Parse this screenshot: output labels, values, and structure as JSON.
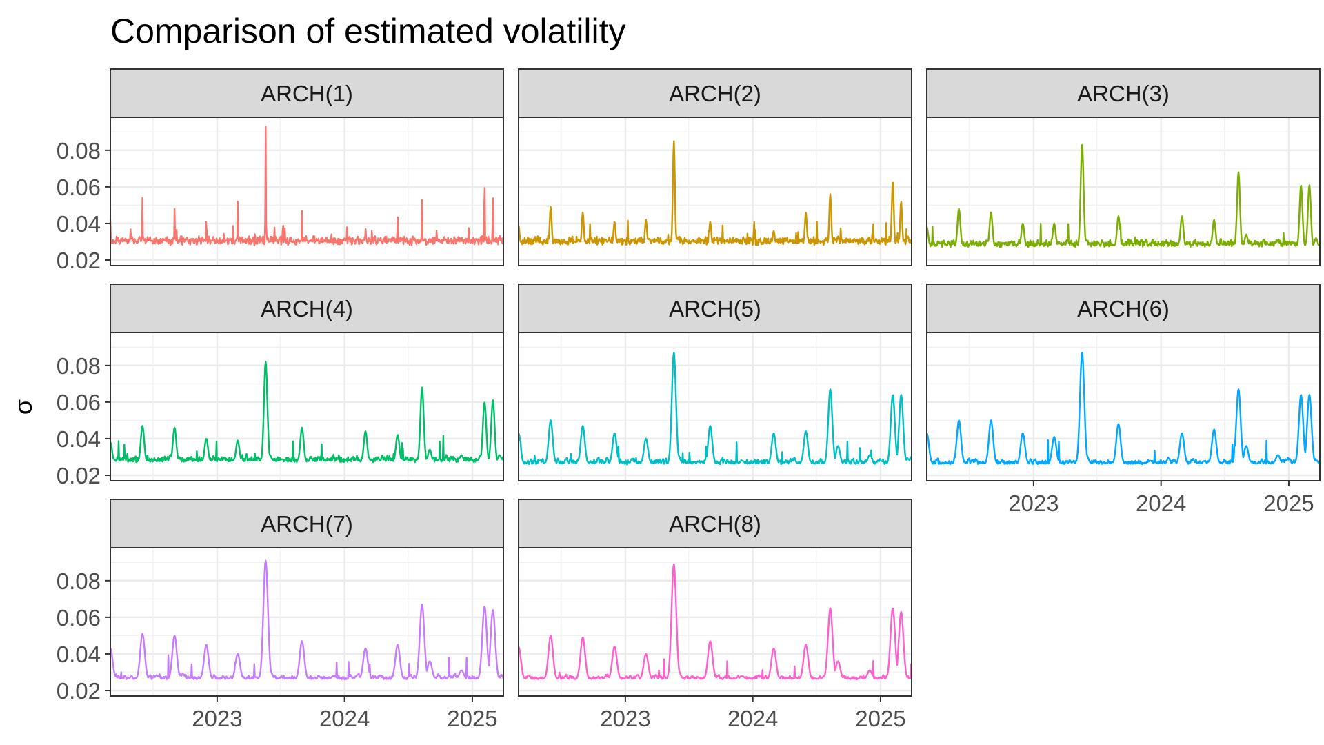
{
  "chart_data": {
    "type": "line",
    "title": "Comparison of estimated volatility",
    "xlabel": "",
    "ylabel": "σ",
    "x_range": [
      "2022-03-01",
      "2025-03-31"
    ],
    "ylim": [
      0.02,
      0.095
    ],
    "y_ticks": [
      "0.02",
      "0.04",
      "0.06",
      "0.08"
    ],
    "x_ticks": [
      {
        "date": "2023-01-01",
        "label": "2023"
      },
      {
        "date": "2024-01-01",
        "label": "2024"
      },
      {
        "date": "2025-01-01",
        "label": "2025"
      }
    ],
    "grid": true,
    "legend": "none",
    "panels": [
      {
        "name": "ARCH(1)",
        "color": "#F8766D",
        "base": 0.028,
        "noise": 0.003,
        "spike_scale": 1.0,
        "smooth": 0.0,
        "x": [
          "2022-03-01",
          "2022-06-01",
          "2022-09-01",
          "2022-12-01",
          "2023-03-01",
          "2023-05-20",
          "2023-06-01",
          "2023-09-01",
          "2023-12-01",
          "2024-03-01",
          "2024-06-01",
          "2024-08-10",
          "2024-09-01",
          "2024-12-01",
          "2025-02-05",
          "2025-03-01",
          "2025-03-20"
        ],
        "y": [
          0.042,
          0.054,
          0.048,
          0.044,
          0.052,
          0.093,
          0.028,
          0.047,
          0.028,
          0.038,
          0.045,
          0.053,
          0.032,
          0.029,
          0.069,
          0.056,
          0.035
        ]
      },
      {
        "name": "ARCH(2)",
        "color": "#CD9600",
        "base": 0.028,
        "noise": 0.003,
        "spike_scale": 1.0,
        "smooth": 0.25,
        "x": [
          "2022-03-01",
          "2022-06-01",
          "2022-09-01",
          "2022-12-01",
          "2023-03-01",
          "2023-05-20",
          "2023-06-01",
          "2023-09-01",
          "2023-12-01",
          "2024-03-01",
          "2024-06-01",
          "2024-08-10",
          "2024-09-01",
          "2024-12-01",
          "2025-02-05",
          "2025-03-01",
          "2025-03-20"
        ],
        "y": [
          0.039,
          0.049,
          0.046,
          0.041,
          0.042,
          0.085,
          0.03,
          0.041,
          0.028,
          0.036,
          0.046,
          0.056,
          0.033,
          0.029,
          0.063,
          0.052,
          0.033
        ]
      },
      {
        "name": "ARCH(3)",
        "color": "#7CAE00",
        "base": 0.027,
        "noise": 0.003,
        "spike_scale": 1.0,
        "smooth": 0.45,
        "x": [
          "2022-03-01",
          "2022-06-01",
          "2022-09-01",
          "2022-12-01",
          "2023-03-01",
          "2023-05-20",
          "2023-06-01",
          "2023-09-01",
          "2023-12-01",
          "2024-03-01",
          "2024-06-01",
          "2024-08-10",
          "2024-09-01",
          "2024-12-01",
          "2025-02-05",
          "2025-03-01",
          "2025-03-20"
        ],
        "y": [
          0.038,
          0.048,
          0.046,
          0.04,
          0.04,
          0.083,
          0.031,
          0.044,
          0.028,
          0.044,
          0.042,
          0.068,
          0.034,
          0.031,
          0.061,
          0.061,
          0.032
        ]
      },
      {
        "name": "ARCH(4)",
        "color": "#00BE67",
        "base": 0.027,
        "noise": 0.003,
        "spike_scale": 1.0,
        "smooth": 0.55,
        "x": [
          "2022-03-01",
          "2022-06-01",
          "2022-09-01",
          "2022-12-01",
          "2023-03-01",
          "2023-05-20",
          "2023-06-01",
          "2023-09-01",
          "2023-12-01",
          "2024-03-01",
          "2024-06-01",
          "2024-08-10",
          "2024-09-01",
          "2024-12-01",
          "2025-02-05",
          "2025-03-01",
          "2025-03-20"
        ],
        "y": [
          0.038,
          0.047,
          0.046,
          0.04,
          0.039,
          0.082,
          0.031,
          0.046,
          0.028,
          0.044,
          0.042,
          0.068,
          0.034,
          0.031,
          0.06,
          0.061,
          0.031
        ]
      },
      {
        "name": "ARCH(5)",
        "color": "#00BFC4",
        "base": 0.026,
        "noise": 0.003,
        "spike_scale": 1.0,
        "smooth": 0.7,
        "x": [
          "2022-03-01",
          "2022-06-01",
          "2022-09-01",
          "2022-12-01",
          "2023-03-01",
          "2023-05-20",
          "2023-06-01",
          "2023-09-01",
          "2023-12-01",
          "2024-03-01",
          "2024-06-01",
          "2024-08-10",
          "2024-09-01",
          "2024-12-01",
          "2025-02-05",
          "2025-03-01",
          "2025-03-20"
        ],
        "y": [
          0.043,
          0.05,
          0.047,
          0.043,
          0.04,
          0.087,
          0.031,
          0.047,
          0.028,
          0.043,
          0.044,
          0.067,
          0.036,
          0.031,
          0.064,
          0.064,
          0.029
        ]
      },
      {
        "name": "ARCH(6)",
        "color": "#00A9FF",
        "base": 0.026,
        "noise": 0.003,
        "spike_scale": 1.0,
        "smooth": 0.75,
        "x": [
          "2022-03-01",
          "2022-06-01",
          "2022-09-01",
          "2022-12-01",
          "2023-03-01",
          "2023-05-20",
          "2023-06-01",
          "2023-09-01",
          "2023-12-01",
          "2024-03-01",
          "2024-06-01",
          "2024-08-10",
          "2024-09-01",
          "2024-12-01",
          "2025-02-05",
          "2025-03-01",
          "2025-03-20"
        ],
        "y": [
          0.043,
          0.05,
          0.05,
          0.043,
          0.041,
          0.087,
          0.031,
          0.048,
          0.028,
          0.043,
          0.045,
          0.067,
          0.036,
          0.031,
          0.064,
          0.064,
          0.028
        ]
      },
      {
        "name": "ARCH(7)",
        "color": "#C77CFF",
        "base": 0.026,
        "noise": 0.003,
        "spike_scale": 1.0,
        "smooth": 0.8,
        "x": [
          "2022-03-01",
          "2022-06-01",
          "2022-09-01",
          "2022-12-01",
          "2023-03-01",
          "2023-05-20",
          "2023-06-01",
          "2023-09-01",
          "2023-12-01",
          "2024-03-01",
          "2024-06-01",
          "2024-08-10",
          "2024-09-01",
          "2024-12-01",
          "2025-02-05",
          "2025-03-01",
          "2025-03-20"
        ],
        "y": [
          0.043,
          0.051,
          0.05,
          0.045,
          0.04,
          0.091,
          0.031,
          0.047,
          0.028,
          0.043,
          0.045,
          0.067,
          0.036,
          0.031,
          0.066,
          0.064,
          0.027
        ]
      },
      {
        "name": "ARCH(8)",
        "color": "#FF61CC",
        "base": 0.026,
        "noise": 0.003,
        "spike_scale": 1.0,
        "smooth": 0.82,
        "x": [
          "2022-03-01",
          "2022-06-01",
          "2022-09-01",
          "2022-12-01",
          "2023-03-01",
          "2023-05-20",
          "2023-06-01",
          "2023-09-01",
          "2023-12-01",
          "2024-03-01",
          "2024-06-01",
          "2024-08-10",
          "2024-09-01",
          "2024-12-01",
          "2025-02-05",
          "2025-03-01",
          "2025-03-20"
        ],
        "y": [
          0.044,
          0.05,
          0.049,
          0.044,
          0.04,
          0.089,
          0.031,
          0.047,
          0.028,
          0.043,
          0.045,
          0.065,
          0.036,
          0.031,
          0.065,
          0.063,
          0.027
        ]
      }
    ]
  }
}
